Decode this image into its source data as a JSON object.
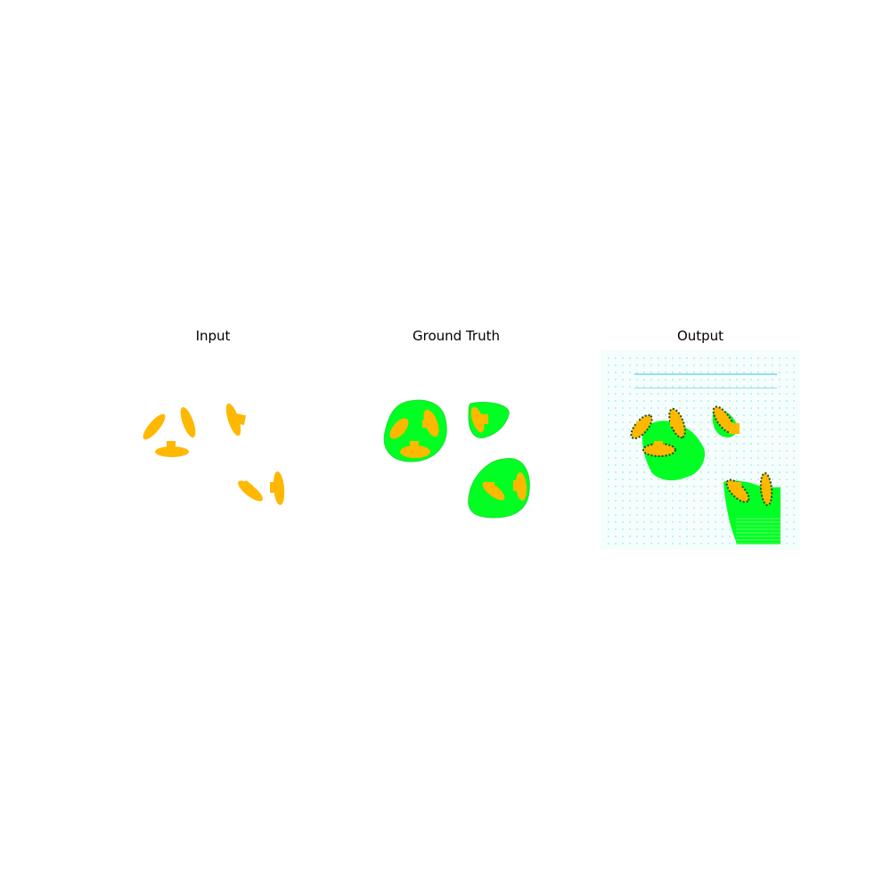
{
  "titles": {
    "input": "Input",
    "ground_truth": "Ground Truth",
    "output": "Output"
  },
  "colors": {
    "background": "#ffffff",
    "shape": "#ffb800",
    "region": "#00ff22",
    "dark_edge": "#1a4d1a",
    "noise": "#8ee8ee"
  }
}
